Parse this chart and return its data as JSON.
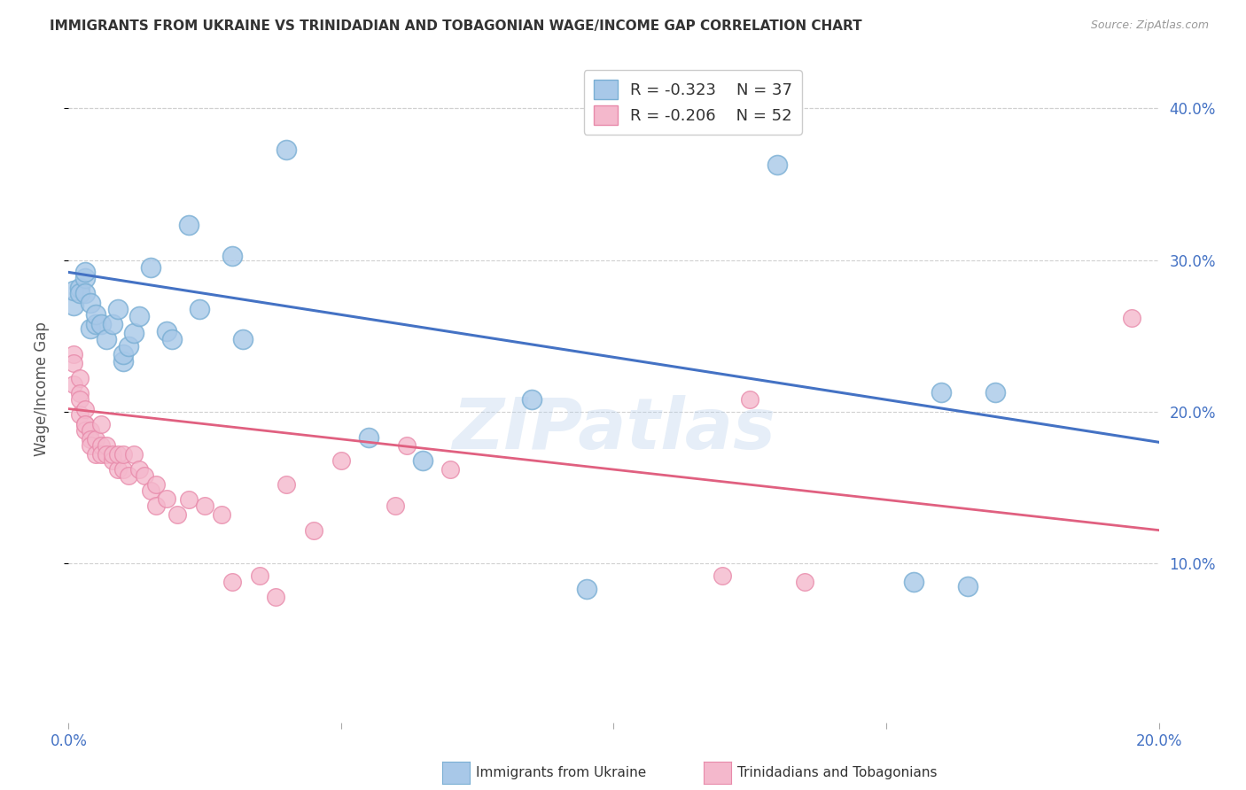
{
  "title": "IMMIGRANTS FROM UKRAINE VS TRINIDADIAN AND TOBAGONIAN WAGE/INCOME GAP CORRELATION CHART",
  "source": "Source: ZipAtlas.com",
  "ylabel": "Wage/Income Gap",
  "xlim": [
    0.0,
    0.2
  ],
  "ylim": [
    -0.005,
    0.435
  ],
  "yticks": [
    0.1,
    0.2,
    0.3,
    0.4
  ],
  "xticks": [
    0.0,
    0.05,
    0.1,
    0.15,
    0.2
  ],
  "ukraine_color": "#a8c8e8",
  "ukraine_edge": "#7aafd4",
  "tnt_color": "#f4b8cc",
  "tnt_edge": "#e88aaa",
  "blue_line_color": "#4472C4",
  "pink_line_color": "#E06080",
  "legend_ukraine_R": "R = -0.323",
  "legend_ukraine_N": "N = 37",
  "legend_tnt_R": "R = -0.206",
  "legend_tnt_N": "N = 52",
  "ukraine_x": [
    0.001,
    0.001,
    0.002,
    0.002,
    0.003,
    0.003,
    0.003,
    0.004,
    0.004,
    0.005,
    0.005,
    0.006,
    0.007,
    0.008,
    0.009,
    0.01,
    0.01,
    0.011,
    0.012,
    0.013,
    0.015,
    0.018,
    0.019,
    0.022,
    0.024,
    0.03,
    0.032,
    0.04,
    0.055,
    0.065,
    0.085,
    0.095,
    0.13,
    0.155,
    0.16,
    0.165,
    0.17
  ],
  "ukraine_y": [
    0.27,
    0.28,
    0.282,
    0.278,
    0.288,
    0.292,
    0.278,
    0.272,
    0.255,
    0.258,
    0.264,
    0.258,
    0.248,
    0.258,
    0.268,
    0.233,
    0.238,
    0.243,
    0.252,
    0.263,
    0.295,
    0.253,
    0.248,
    0.323,
    0.268,
    0.303,
    0.248,
    0.373,
    0.183,
    0.168,
    0.208,
    0.083,
    0.363,
    0.088,
    0.213,
    0.085,
    0.213
  ],
  "tnt_x": [
    0.001,
    0.001,
    0.001,
    0.002,
    0.002,
    0.002,
    0.002,
    0.003,
    0.003,
    0.003,
    0.003,
    0.004,
    0.004,
    0.004,
    0.005,
    0.005,
    0.006,
    0.006,
    0.006,
    0.007,
    0.007,
    0.008,
    0.008,
    0.009,
    0.009,
    0.01,
    0.01,
    0.011,
    0.012,
    0.013,
    0.014,
    0.015,
    0.016,
    0.016,
    0.018,
    0.02,
    0.022,
    0.025,
    0.028,
    0.03,
    0.035,
    0.038,
    0.04,
    0.045,
    0.05,
    0.06,
    0.062,
    0.07,
    0.12,
    0.125,
    0.135,
    0.195
  ],
  "tnt_y": [
    0.238,
    0.232,
    0.218,
    0.222,
    0.212,
    0.208,
    0.198,
    0.192,
    0.202,
    0.188,
    0.192,
    0.188,
    0.182,
    0.178,
    0.182,
    0.172,
    0.192,
    0.178,
    0.172,
    0.178,
    0.172,
    0.168,
    0.172,
    0.162,
    0.172,
    0.162,
    0.172,
    0.158,
    0.172,
    0.162,
    0.158,
    0.148,
    0.152,
    0.138,
    0.143,
    0.132,
    0.142,
    0.138,
    0.132,
    0.088,
    0.092,
    0.078,
    0.152,
    0.122,
    0.168,
    0.138,
    0.178,
    0.162,
    0.092,
    0.208,
    0.088,
    0.262
  ],
  "blue_line_x0": 0.0,
  "blue_line_x1": 0.2,
  "blue_line_y0": 0.292,
  "blue_line_y1": 0.18,
  "pink_line_x0": 0.0,
  "pink_line_x1": 0.2,
  "pink_line_y0": 0.202,
  "pink_line_y1": 0.122,
  "watermark": "ZIPatlas",
  "background_color": "#ffffff",
  "grid_color": "#d0d0d0"
}
